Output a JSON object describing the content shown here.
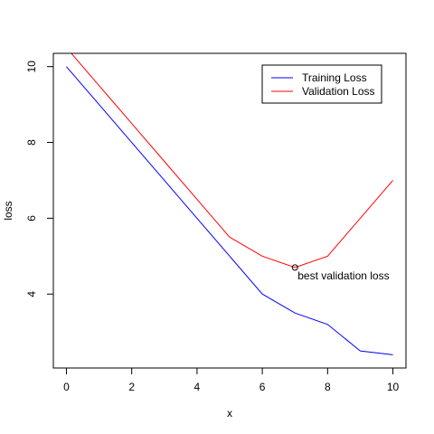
{
  "chart_data": {
    "type": "line",
    "xlabel": "x",
    "ylabel": "loss",
    "xlim": [
      -0.4,
      10.4
    ],
    "ylim": [
      2.05,
      10.35
    ],
    "xticks": [
      0,
      2,
      4,
      6,
      8,
      10
    ],
    "yticks": [
      4,
      6,
      8,
      10
    ],
    "grid": false,
    "legend_position": "top-right",
    "series": [
      {
        "name": "Training Loss",
        "color": "#0000ff",
        "x": [
          0,
          1,
          2,
          3,
          4,
          5,
          6,
          7,
          8,
          9,
          10
        ],
        "y": [
          10.0,
          9.0,
          8.0,
          7.0,
          6.0,
          5.0,
          4.0,
          3.5,
          3.2,
          2.5,
          2.4
        ]
      },
      {
        "name": "Validation Loss",
        "color": "#ff0000",
        "x": [
          0,
          1,
          2,
          3,
          4,
          5,
          6,
          7,
          8,
          9,
          10
        ],
        "y": [
          10.5,
          9.5,
          8.5,
          7.5,
          6.5,
          5.5,
          5.0,
          4.7,
          5.0,
          6.0,
          7.0
        ]
      }
    ],
    "annotations": [
      {
        "text": "best validation loss",
        "x": 7,
        "y": 4.7,
        "marker": "open-circle"
      }
    ]
  }
}
